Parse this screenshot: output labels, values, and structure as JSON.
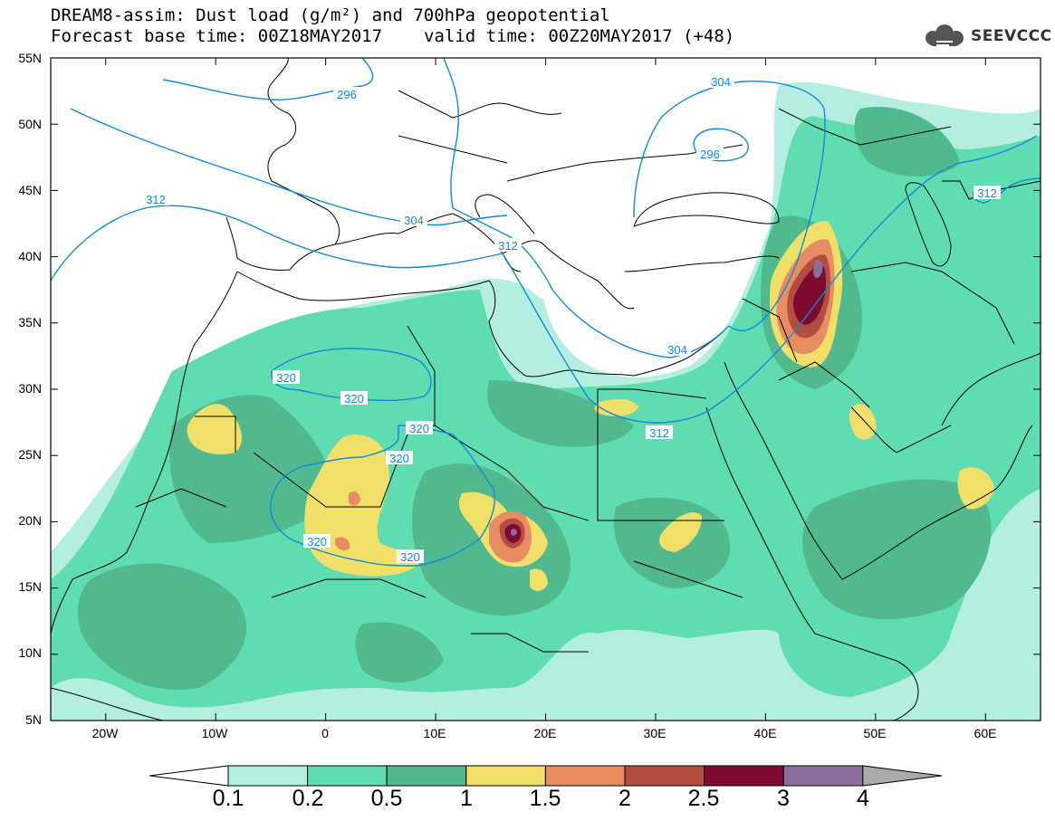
{
  "header": {
    "line1": "DREAM8-assim: Dust load (g/m²) and 700hPa geopotential",
    "base_time": "Forecast base time: 00Z18MAY2017",
    "valid_time": "valid time: 00Z20MAY2017 (+48)"
  },
  "logo": {
    "text": "SEEVCCC",
    "icon": "cloud-icon"
  },
  "map": {
    "lon_range": [
      -25,
      65
    ],
    "lat_range": [
      5,
      55
    ],
    "lat_labels": [
      "55N",
      "50N",
      "45N",
      "40N",
      "35N",
      "30N",
      "25N",
      "20N",
      "15N",
      "10N",
      "5N"
    ],
    "lon_labels": [
      "20W",
      "10W",
      "0",
      "10E",
      "20E",
      "30E",
      "40E",
      "50E",
      "60E"
    ],
    "contour_labels": [
      "296",
      "304",
      "296",
      "312",
      "304",
      "312",
      "304",
      "312",
      "312",
      "320",
      "320",
      "320",
      "320",
      "320",
      "320"
    ],
    "colors": {
      "coast": "#000000",
      "contour": "#0c8be0"
    }
  },
  "colorbar": {
    "ticks": [
      "0.1",
      "0.2",
      "0.5",
      "1",
      "1.5",
      "2",
      "2.5",
      "3",
      "4"
    ],
    "colors": [
      "#ffffff",
      "#b4eee0",
      "#5fdcb0",
      "#52b98f",
      "#f0e06a",
      "#e88c62",
      "#b24e40",
      "#7f0a30",
      "#8a6f9e",
      "#aaaaaa"
    ]
  }
}
